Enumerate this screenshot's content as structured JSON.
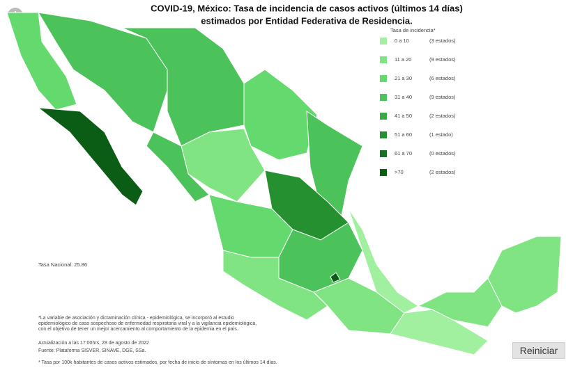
{
  "title": [
    "COVID-19, México: Tasa de incidencia de casos activos (últimos 14 días)",
    "estimados por Entidad Federativa de Residencia."
  ],
  "legend": {
    "title": "Tasa de incidencia*",
    "items": [
      {
        "range": "0 a 10",
        "count": "(3 estados)",
        "color": "#a0f0a0"
      },
      {
        "range": "11 a 20",
        "count": "(9 estados)",
        "color": "#80e482"
      },
      {
        "range": "21 a 30",
        "count": "(6 estados)",
        "color": "#64d96e"
      },
      {
        "range": "31 a 40",
        "count": "(9 estados)",
        "color": "#4cc35a"
      },
      {
        "range": "41 a 50",
        "count": "(2 estados)",
        "color": "#38a944"
      },
      {
        "range": "51 a 60",
        "count": "(1 estado)",
        "color": "#24902f"
      },
      {
        "range": "61 a 70",
        "count": "(0 estados)",
        "color": "#187224"
      },
      {
        "range": ">70",
        "count": "(2 estados)",
        "color": "#0b5c14"
      }
    ]
  },
  "national_rate": "Tasa Nacional: 25.86",
  "notes": [
    "*La variable de asociación y dictaminación clínica - epidemiológica, se incorporó al estudio",
    "epidemiológico de caso sospechoso de enfermedad respiratoria viral y a la vigilancia epidemiológica,",
    "con el objetivo de tener un mejor acercamiento al comportamiento de la epidemia en el país.",
    "Actualización a las 17:00hrs, 28 de agosto de 2022",
    "Fuente: Plataforma SISVER, SINAVE, DGE, SSa.",
    "* Tasa por 100k habitantes de casos activos estimados, por fecha de inicio de síntomas en los últimos 14 días."
  ],
  "button": "Reiniciar"
}
